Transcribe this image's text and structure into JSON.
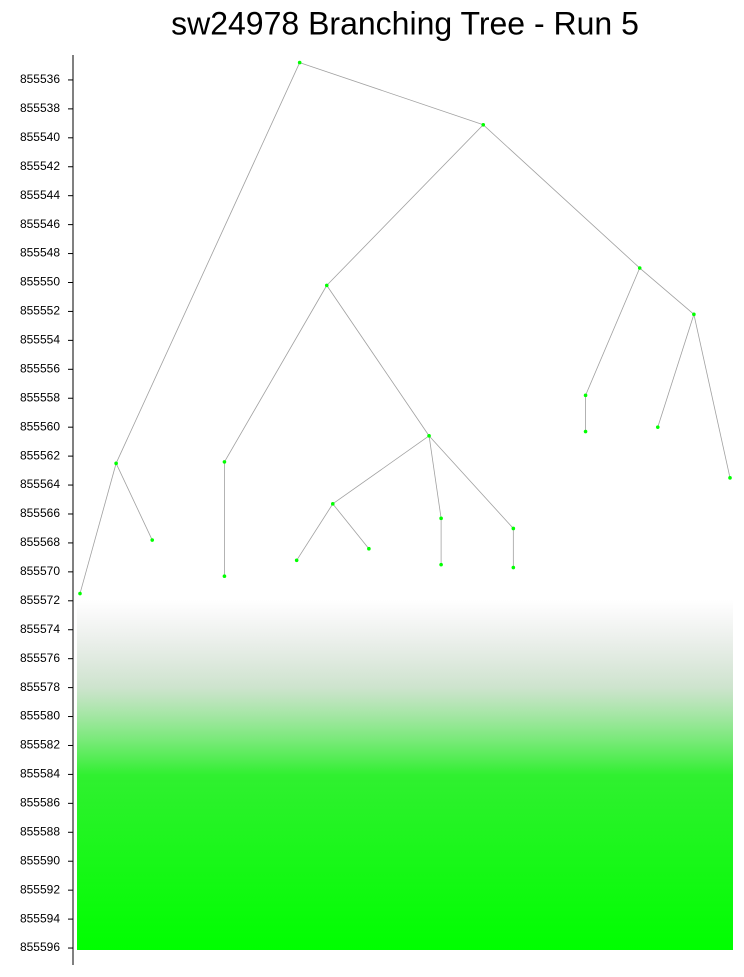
{
  "chart_data": {
    "type": "tree",
    "title": "sw24978 Branching Tree - Run 5",
    "ylim": [
      855534,
      855597
    ],
    "yticks": [
      855536,
      855538,
      855540,
      855542,
      855544,
      855546,
      855548,
      855550,
      855552,
      855554,
      855556,
      855558,
      855560,
      855562,
      855564,
      855566,
      855568,
      855570,
      855572,
      855574,
      855576,
      855578,
      855580,
      855582,
      855584,
      855586,
      855588,
      855590,
      855592,
      855594,
      855596
    ],
    "inverted": true,
    "node_color": "#00ff00",
    "edge_color": "#a0a0a0",
    "root": {
      "value": 855534.8,
      "children": [
        {
          "value": 855562.5,
          "children": [
            {
              "value": 855571.5
            },
            {
              "value": 855567.8
            }
          ]
        },
        {
          "value": 855539.1,
          "children": [
            {
              "value": 855550.2,
              "children": [
                {
                  "value": 855562.4,
                  "children": [
                    {
                      "value": 855570.3
                    }
                  ]
                },
                {
                  "value": 855560.6,
                  "children": [
                    {
                      "value": 855565.3,
                      "children": [
                        {
                          "value": 855569.2
                        },
                        {
                          "value": 855568.4
                        }
                      ]
                    },
                    {
                      "value": 855566.3,
                      "children": [
                        {
                          "value": 855569.5
                        }
                      ]
                    },
                    {
                      "value": 855567.0,
                      "children": [
                        {
                          "value": 855569.7
                        }
                      ]
                    }
                  ]
                }
              ]
            },
            {
              "value": 855549.0,
              "children": [
                {
                  "value": 855557.8,
                  "children": [
                    {
                      "value": 855560.3
                    }
                  ]
                },
                {
                  "value": 855552.2,
                  "children": [
                    {
                      "value": 855560.0
                    },
                    {
                      "value": 855563.5
                    }
                  ]
                }
              ]
            }
          ]
        }
      ]
    }
  }
}
